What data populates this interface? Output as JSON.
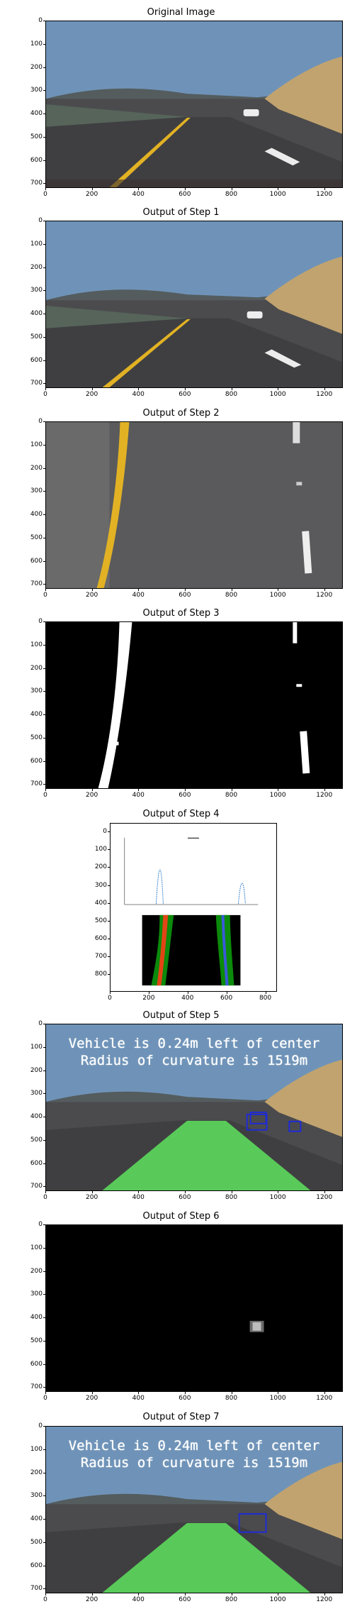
{
  "panels": [
    {
      "title": "Original Image",
      "kind": "road"
    },
    {
      "title": "Output of Step 1",
      "kind": "road"
    },
    {
      "title": "Output of Step 2",
      "kind": "warped"
    },
    {
      "title": "Output of Step 3",
      "kind": "binary"
    },
    {
      "title": "Output of Step 4",
      "kind": "histogram"
    },
    {
      "title": "Output of Step 5",
      "kind": "lane"
    },
    {
      "title": "Output of Step 6",
      "kind": "heatmap"
    },
    {
      "title": "Output of Step 7",
      "kind": "lane_final"
    }
  ],
  "axes": {
    "y_ticks": [
      "0",
      "100",
      "200",
      "300",
      "400",
      "500",
      "600",
      "700"
    ],
    "x_ticks": [
      "0",
      "200",
      "400",
      "600",
      "800",
      "1000",
      "1200"
    ],
    "y_ticks_step4": [
      "0",
      "100",
      "200",
      "300",
      "400",
      "500",
      "600",
      "700",
      "800"
    ],
    "x_ticks_step4": [
      "0",
      "200",
      "400",
      "600",
      "800"
    ]
  },
  "overlay": {
    "line1": "Vehicle is 0.24m left of center",
    "line2": "Radius of curvature is 1519m"
  },
  "colors": {
    "sky": "#6f93b8",
    "road": "#4a4a4c",
    "lane_fill": "#5ee35e",
    "box": "#1f2bd6",
    "yellow_line": "#e2b224"
  }
}
